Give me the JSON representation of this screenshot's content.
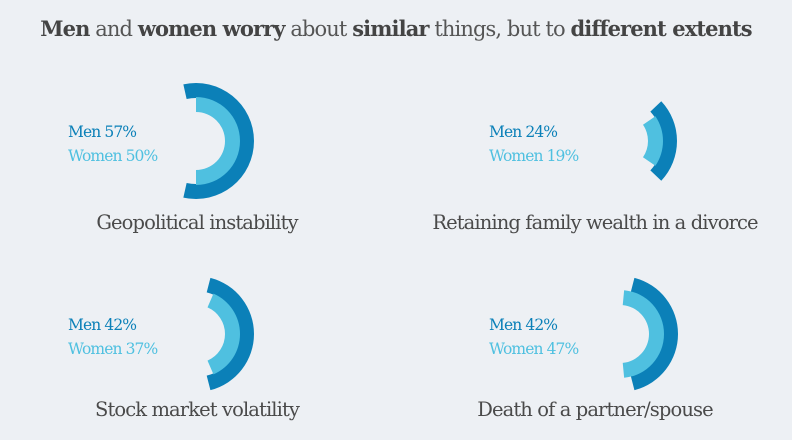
{
  "title_parts": [
    {
      "text": "Men",
      "bold": true
    },
    {
      "text": " and ",
      "bold": false
    },
    {
      "text": "women worry",
      "bold": true
    },
    {
      "text": " about ",
      "bold": false
    },
    {
      "text": "similar",
      "bold": true
    },
    {
      "text": " things, but to ",
      "bold": false
    },
    {
      "text": "different extents",
      "bold": true
    }
  ],
  "colors": {
    "men": "#0b80b8",
    "women": "#4fc0e0",
    "text": "#4a4a4a",
    "background": "#edf0f4"
  },
  "chart_data": {
    "type": "radial-arc",
    "title": "Men and women worry about similar things, but to different extents",
    "series_names": [
      "Men",
      "Women"
    ],
    "unit": "%",
    "panels": [
      {
        "category": "Geopolitical instability",
        "men": 57,
        "women": 50,
        "men_label": "Men 57%",
        "women_label": "Women 50%"
      },
      {
        "category": "Retaining family wealth in a divorce",
        "men": 24,
        "women": 19,
        "men_label": "Men 24%",
        "women_label": "Women 19%"
      },
      {
        "category": "Stock market volatility",
        "men": 42,
        "women": 37,
        "men_label": "Men 42%",
        "women_label": "Women 37%"
      },
      {
        "category": "Death of a partner/spouse",
        "men": 42,
        "women": 47,
        "men_label": "Men 42%",
        "women_label": "Women 47%"
      }
    ]
  }
}
